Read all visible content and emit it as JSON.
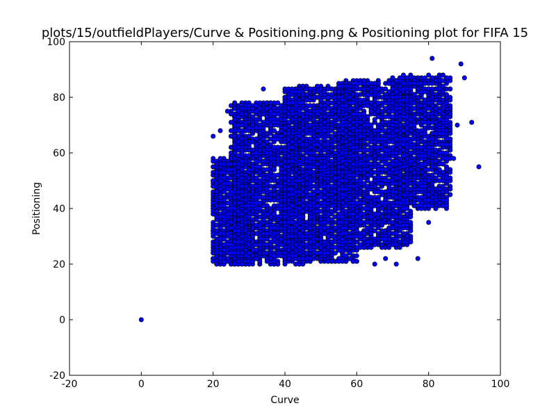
{
  "chart_data": {
    "type": "scatter",
    "title": "plots/15/outfieldPlayers/Curve & Positioning.png & Positioning plot for FIFA 15",
    "xlabel": "Curve",
    "ylabel": "Positioning",
    "xlim": [
      -20,
      100
    ],
    "ylim": [
      -20,
      100
    ],
    "xticks": [
      -20,
      0,
      20,
      40,
      60,
      80,
      100
    ],
    "yticks": [
      -20,
      0,
      20,
      40,
      60,
      80,
      100
    ],
    "grid": false,
    "legend": "none",
    "marker_color": "#0000ff",
    "edge_color": "#000000",
    "outliers": [
      {
        "x": 0,
        "y": 0
      },
      {
        "x": 94,
        "y": 55
      },
      {
        "x": 81,
        "y": 94
      },
      {
        "x": 89,
        "y": 92
      },
      {
        "x": 90,
        "y": 87
      },
      {
        "x": 92,
        "y": 71
      },
      {
        "x": 65,
        "y": 20
      },
      {
        "x": 68,
        "y": 22
      },
      {
        "x": 71,
        "y": 20
      },
      {
        "x": 77,
        "y": 22
      },
      {
        "x": 20,
        "y": 66
      },
      {
        "x": 22,
        "y": 68
      },
      {
        "x": 24,
        "y": 75
      },
      {
        "x": 34,
        "y": 83
      },
      {
        "x": 88,
        "y": 70
      },
      {
        "x": 87,
        "y": 58
      },
      {
        "x": 83,
        "y": 47
      },
      {
        "x": 80,
        "y": 35
      },
      {
        "x": 75,
        "y": 28
      },
      {
        "x": 61,
        "y": 27
      },
      {
        "x": 57,
        "y": 21
      },
      {
        "x": 53,
        "y": 21
      }
    ],
    "clusters": [
      {
        "x_range": [
          20,
          30
        ],
        "y_range": [
          20,
          58
        ],
        "count": 900
      },
      {
        "x_range": [
          25,
          45
        ],
        "y_range": [
          20,
          78
        ],
        "count": 2200
      },
      {
        "x_range": [
          40,
          60
        ],
        "y_range": [
          21,
          84
        ],
        "count": 2600
      },
      {
        "x_range": [
          55,
          75
        ],
        "y_range": [
          26,
          86
        ],
        "count": 2200
      },
      {
        "x_range": [
          70,
          86
        ],
        "y_range": [
          40,
          88
        ],
        "count": 1400
      }
    ]
  }
}
